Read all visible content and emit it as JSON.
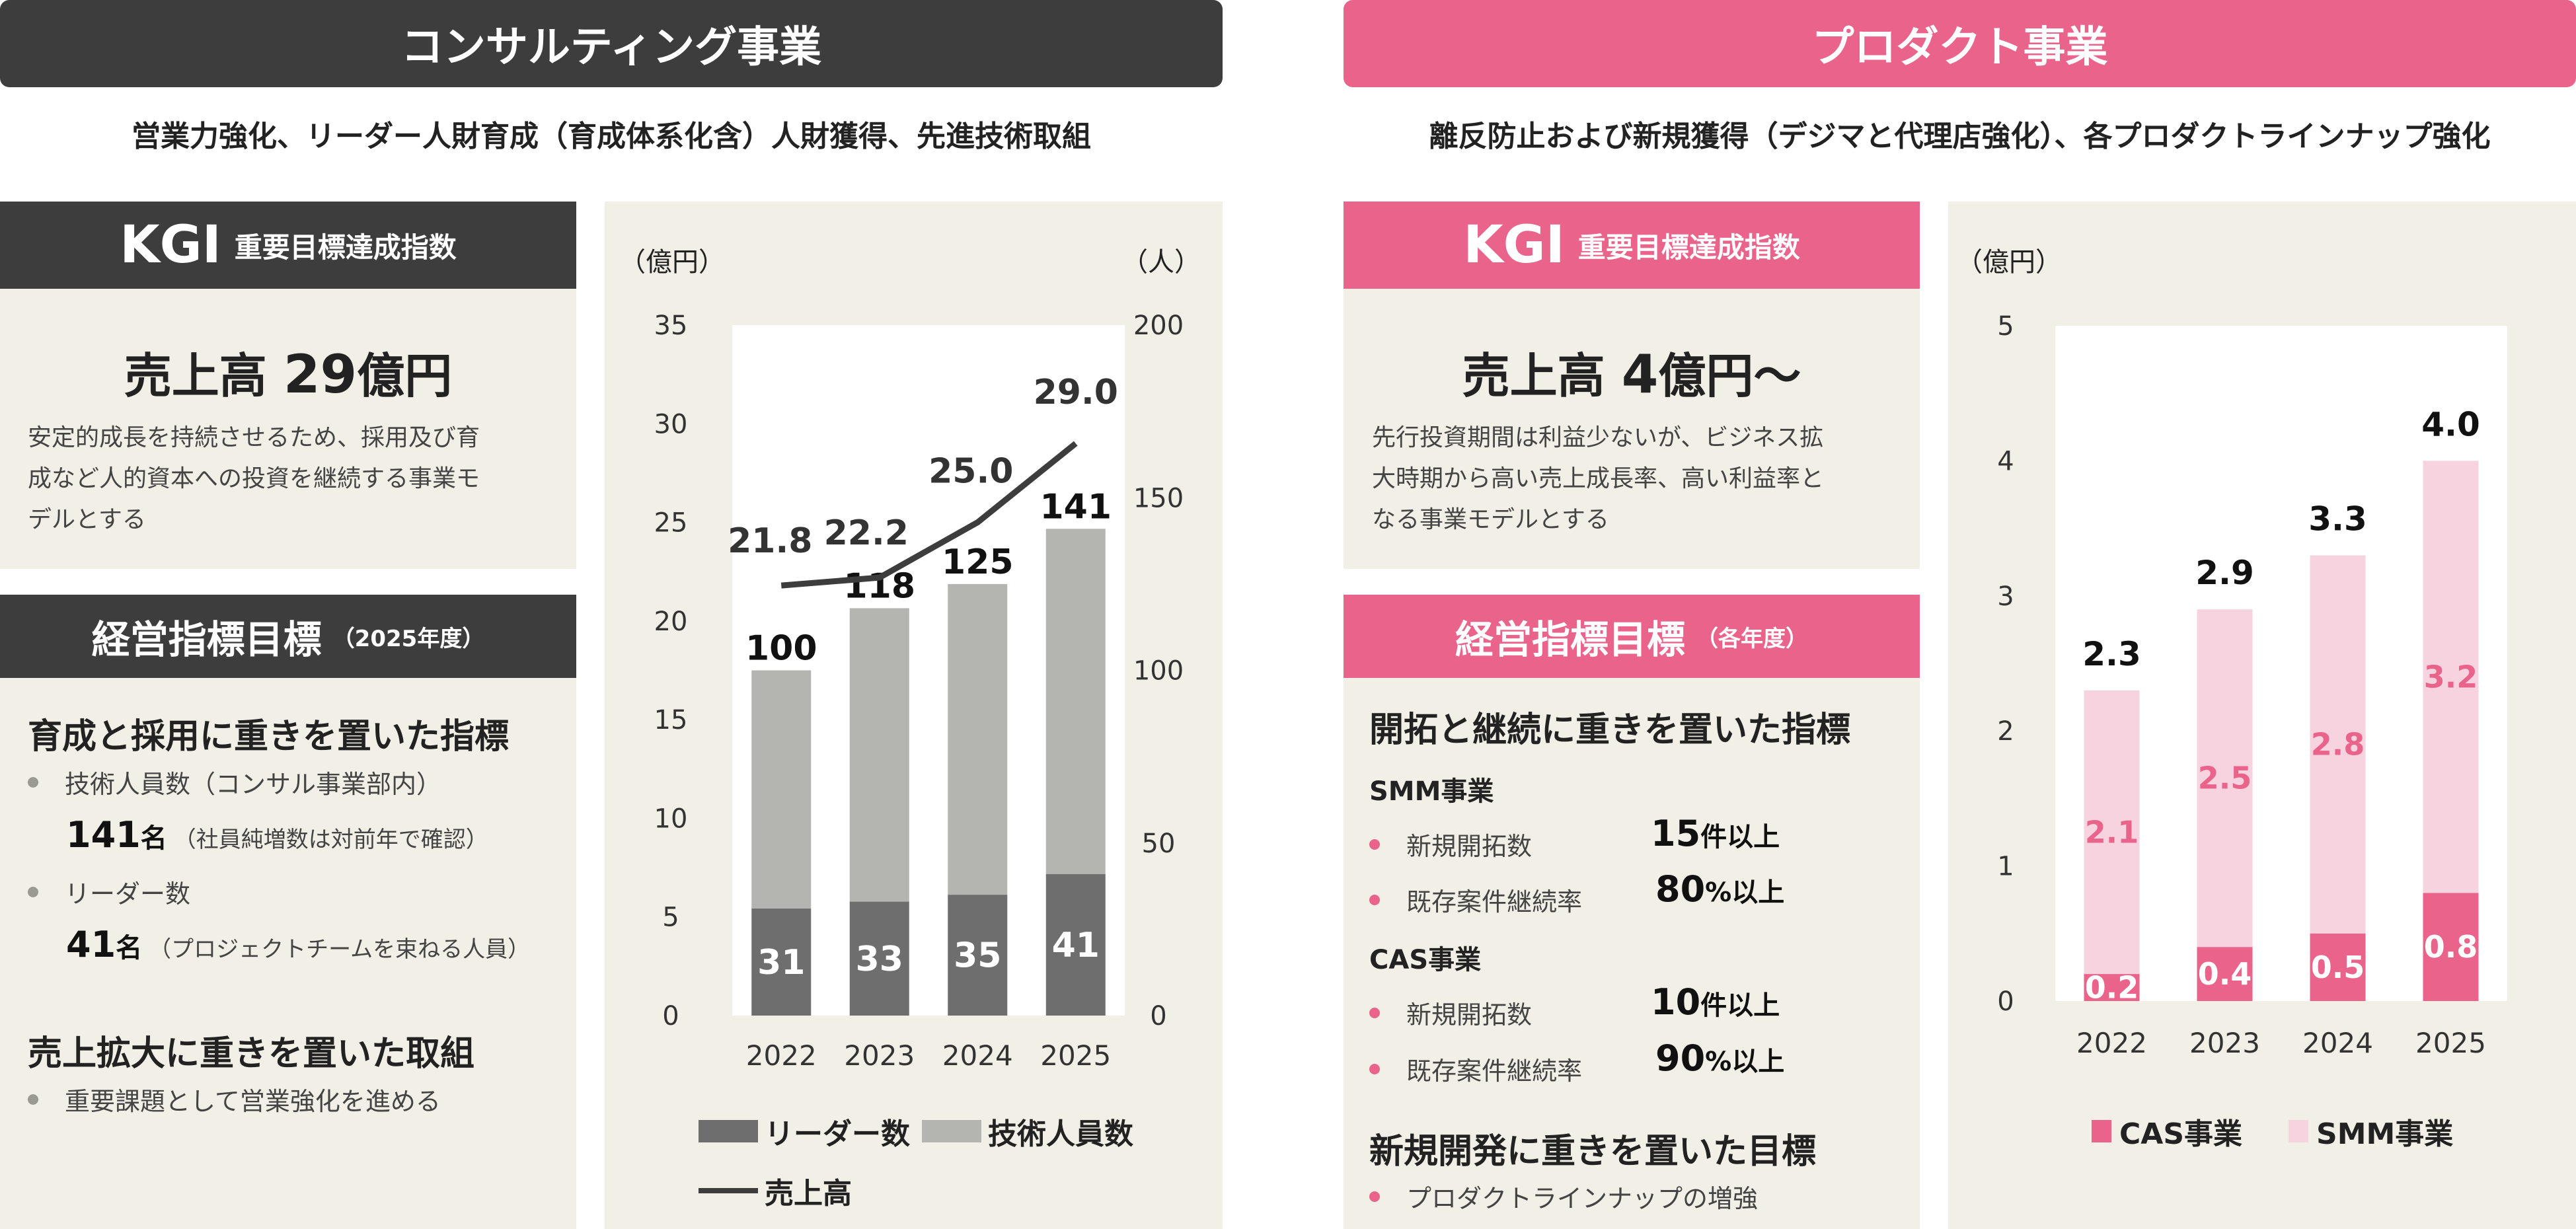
{
  "consulting": {
    "banner": "コンサルティング事業",
    "subtitle": "営業力強化、リーダー人財育成（育成体系化含）人財獲得、先進技術取組",
    "kgi_header": {
      "main": "KGI",
      "sub": "重要目標達成指数"
    },
    "kgi_value": {
      "prefix": "売上高 ",
      "number": "29",
      "suffix": "億円"
    },
    "kgi_desc": [
      "安定的成長を持続させるため、採用及び育",
      "成など人的資本への投資を継続する事業モ",
      "デルとする"
    ],
    "mgmt_header": {
      "main": "経営指標目標",
      "sub": "（2025年度）"
    },
    "section1": "育成と採用に重きを置いた指標",
    "items": [
      {
        "label": "技術人員数（コンサル事業部内）",
        "number": "141",
        "unit": "名",
        "note": "（社員純増数は対前年で確認）"
      },
      {
        "label": "リーダー数",
        "number": "41",
        "unit": "名",
        "note": "（プロジェクトチームを束ねる人員）"
      }
    ],
    "section2": "売上拡大に重きを置いた取組",
    "item3": "重要課題として営業強化を進める"
  },
  "product": {
    "banner": "プロダクト事業",
    "subtitle": "離反防止および新規獲得（デジマと代理店強化）、各プロダクトラインナップ強化",
    "kgi_header": {
      "main": "KGI",
      "sub": "重要目標達成指数"
    },
    "kgi_value": {
      "prefix": "売上高 ",
      "number": "4",
      "suffix": "億円〜"
    },
    "kgi_desc": [
      "先行投資期間は利益少ないが、ビジネス拡",
      "大時期から高い売上成長率、高い利益率と",
      "なる事業モデルとする"
    ],
    "mgmt_header": {
      "main": "経営指標目標",
      "sub": "（各年度）"
    },
    "section1": "開拓と継続に重きを置いた指標",
    "smm": {
      "title": "SMM事業",
      "rows": [
        {
          "label": "新規開拓数",
          "number": "15",
          "unit": "件以上"
        },
        {
          "label": "既存案件継続率",
          "number": "80",
          "unit": "%以上"
        }
      ]
    },
    "cas": {
      "title": "CAS事業",
      "rows": [
        {
          "label": "新規開拓数",
          "number": "10",
          "unit": "件以上"
        },
        {
          "label": "既存案件継続率",
          "number": "90",
          "unit": "%以上"
        }
      ]
    },
    "section2": "新規開発に重きを置いた目標",
    "item3": "プロダクトラインナップの増強"
  },
  "colors": {
    "dark": "#3d3d3d",
    "pink": "#e9638a",
    "pink_light": "#f6d3df",
    "leader": "#6e6e6e",
    "tech": "#b4b4b0",
    "beige": "#f2f0e6",
    "bullet_gray": "#9a9a90"
  },
  "chart_data": [
    {
      "type": "bar",
      "stacked": true,
      "categories": [
        "2022",
        "2023",
        "2024",
        "2025"
      ],
      "series": [
        {
          "name": "リーダー数",
          "axis": "right",
          "values": [
            31,
            33,
            35,
            41
          ]
        },
        {
          "name": "技術人員数",
          "axis": "right",
          "values": [
            100,
            118,
            125,
            141
          ]
        }
      ],
      "line": {
        "name": "売上高",
        "axis": "left",
        "values": [
          21.8,
          22.2,
          25.0,
          29.0
        ],
        "labels": [
          "21.8",
          "22.2",
          "25.0",
          "29.0"
        ]
      },
      "y_left": {
        "unit": "（億円）",
        "min": 0,
        "max": 35,
        "ticks": [
          0,
          5,
          10,
          15,
          20,
          25,
          30,
          35
        ]
      },
      "y_right": {
        "unit": "（人）",
        "min": 0,
        "max": 200,
        "ticks": [
          0,
          50,
          100,
          150,
          200
        ]
      },
      "legend": "bottom"
    },
    {
      "type": "bar",
      "stacked": true,
      "categories": [
        "2022",
        "2023",
        "2024",
        "2025"
      ],
      "series": [
        {
          "name": "CAS事業",
          "values": [
            0.2,
            0.4,
            0.5,
            0.8
          ],
          "labels": [
            "0.2",
            "0.4",
            "0.5",
            "0.8"
          ]
        },
        {
          "name": "SMM事業",
          "values": [
            2.1,
            2.5,
            2.8,
            3.2
          ],
          "labels": [
            "2.1",
            "2.5",
            "2.8",
            "3.2"
          ]
        }
      ],
      "totals": [
        "2.3",
        "2.9",
        "3.3",
        "4.0"
      ],
      "y": {
        "unit": "（億円）",
        "min": 0,
        "max": 5,
        "ticks": [
          0,
          1,
          2,
          3,
          4,
          5
        ]
      },
      "legend": "bottom"
    }
  ]
}
